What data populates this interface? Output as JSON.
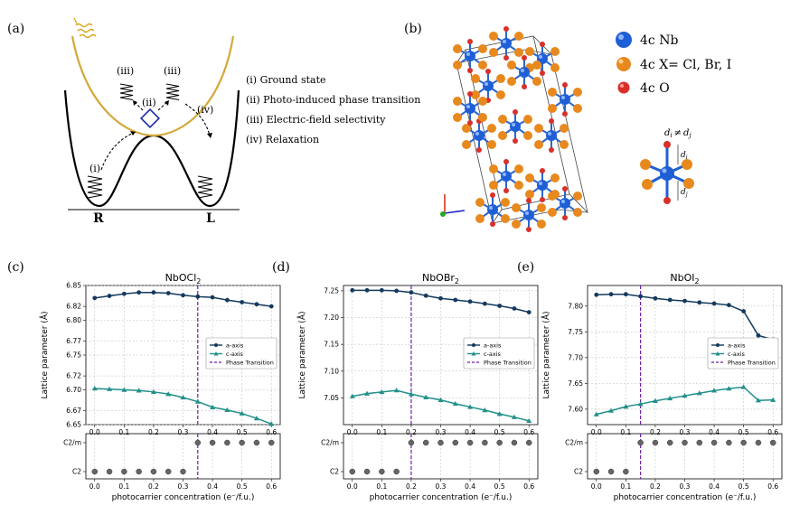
{
  "panel_a": {
    "label": "(a)",
    "steps": [
      "(i) Ground state",
      "(ii) Photo-induced phase transition",
      "(iii) Electric-field selectivity",
      "(iv) Relaxation"
    ],
    "markers": [
      "(i)",
      "(ii)",
      "(iii)",
      "(iii)",
      "(iv)"
    ],
    "well_left": "R",
    "well_right": "L"
  },
  "panel_b": {
    "label": "(b)",
    "legend": [
      {
        "text": "4c Nb",
        "color": "#1f5fd6"
      },
      {
        "text": "4c X= Cl, Br, I",
        "color": "#e8891e"
      },
      {
        "text": "4c O",
        "color": "#d9302a"
      }
    ],
    "bond_note": "d",
    "bond_neq": "≠",
    "bond_sub_i": "i",
    "bond_sub_j": "j"
  },
  "charts": {
    "legend_labels": [
      "a-axis",
      "c-axis",
      "Phase Transition"
    ],
    "xlabel": "photocarrier concentration (e⁻/f.u.)",
    "ylabel": "Lattice parameter (Å)",
    "phase_labels": [
      "C2/m",
      "C2"
    ],
    "colors": {
      "a_axis": "#143a5e",
      "c_axis": "#22908a",
      "transition": "#6a1fa3"
    }
  },
  "chart_data": [
    {
      "type": "line",
      "label": "(c)",
      "title": "NbOCl",
      "title_sub": "2",
      "x": [
        0.0,
        0.05,
        0.1,
        0.15,
        0.2,
        0.25,
        0.3,
        0.35,
        0.4,
        0.45,
        0.5,
        0.55,
        0.6
      ],
      "xticks": [
        "0.0",
        "0.1",
        "0.2",
        "0.3",
        "0.4",
        "0.5",
        "0.6"
      ],
      "series": [
        {
          "name": "a-axis",
          "values": [
            6.832,
            6.835,
            6.838,
            6.84,
            6.84,
            6.839,
            6.836,
            6.834,
            6.833,
            6.829,
            6.826,
            6.823,
            6.82
          ]
        },
        {
          "name": "c-axis",
          "values": [
            6.702,
            6.701,
            6.7,
            6.699,
            6.697,
            6.694,
            6.689,
            6.683,
            6.675,
            6.671,
            6.666,
            6.659,
            6.651
          ]
        }
      ],
      "ylim": [
        6.65,
        6.85
      ],
      "yticks": [
        "6.65",
        "6.67",
        "6.70",
        "6.72",
        "6.75",
        "6.77",
        "6.80",
        "6.82",
        "6.85"
      ],
      "transition_x": 0.35,
      "phase": [
        "C2",
        "C2",
        "C2",
        "C2",
        "C2",
        "C2",
        "C2",
        "C2/m",
        "C2/m",
        "C2/m",
        "C2/m",
        "C2/m",
        "C2/m"
      ],
      "legend_position": "right-middle"
    },
    {
      "type": "line",
      "label": "(d)",
      "title": "NbOBr",
      "title_sub": "2",
      "x": [
        0.0,
        0.05,
        0.1,
        0.15,
        0.2,
        0.25,
        0.3,
        0.35,
        0.4,
        0.45,
        0.5,
        0.55,
        0.6
      ],
      "xticks": [
        "0.0",
        "0.1",
        "0.2",
        "0.3",
        "0.4",
        "0.5",
        "0.6"
      ],
      "series": [
        {
          "name": "a-axis",
          "values": [
            7.251,
            7.251,
            7.251,
            7.25,
            7.247,
            7.241,
            7.236,
            7.233,
            7.23,
            7.226,
            7.222,
            7.217,
            7.21
          ]
        },
        {
          "name": "c-axis",
          "values": [
            7.053,
            7.058,
            7.061,
            7.064,
            7.057,
            7.051,
            7.046,
            7.039,
            7.033,
            7.027,
            7.02,
            7.014,
            7.007
          ]
        }
      ],
      "ylim": [
        7.0,
        7.26
      ],
      "yticks": [
        "7.05",
        "7.10",
        "7.15",
        "7.20",
        "7.25"
      ],
      "transition_x": 0.2,
      "phase": [
        "C2",
        "C2",
        "C2",
        "C2",
        "C2/m",
        "C2/m",
        "C2/m",
        "C2/m",
        "C2/m",
        "C2/m",
        "C2/m",
        "C2/m",
        "C2/m"
      ],
      "legend_position": "right-middle"
    },
    {
      "type": "line",
      "label": "(e)",
      "title": "NbOI",
      "title_sub": "2",
      "x": [
        0.0,
        0.05,
        0.1,
        0.15,
        0.2,
        0.25,
        0.3,
        0.35,
        0.4,
        0.45,
        0.5,
        0.55,
        0.6
      ],
      "xticks": [
        "0.0",
        "0.1",
        "0.2",
        "0.3",
        "0.4",
        "0.5",
        "0.6"
      ],
      "series": [
        {
          "name": "a-axis",
          "values": [
            7.822,
            7.823,
            7.823,
            7.819,
            7.815,
            7.812,
            7.81,
            7.807,
            7.805,
            7.802,
            7.79,
            7.743,
            7.735
          ]
        },
        {
          "name": "c-axis",
          "values": [
            7.59,
            7.597,
            7.605,
            7.61,
            7.616,
            7.621,
            7.626,
            7.631,
            7.636,
            7.64,
            7.643,
            7.617,
            7.618
          ]
        }
      ],
      "ylim": [
        7.57,
        7.84
      ],
      "yticks": [
        "7.60",
        "7.65",
        "7.70",
        "7.75",
        "7.80"
      ],
      "transition_x": 0.15,
      "phase": [
        "C2",
        "C2",
        "C2",
        "C2/m",
        "C2/m",
        "C2/m",
        "C2/m",
        "C2/m",
        "C2/m",
        "C2/m",
        "C2/m",
        "C2/m",
        "C2/m"
      ],
      "legend_position": "right-middle"
    }
  ]
}
